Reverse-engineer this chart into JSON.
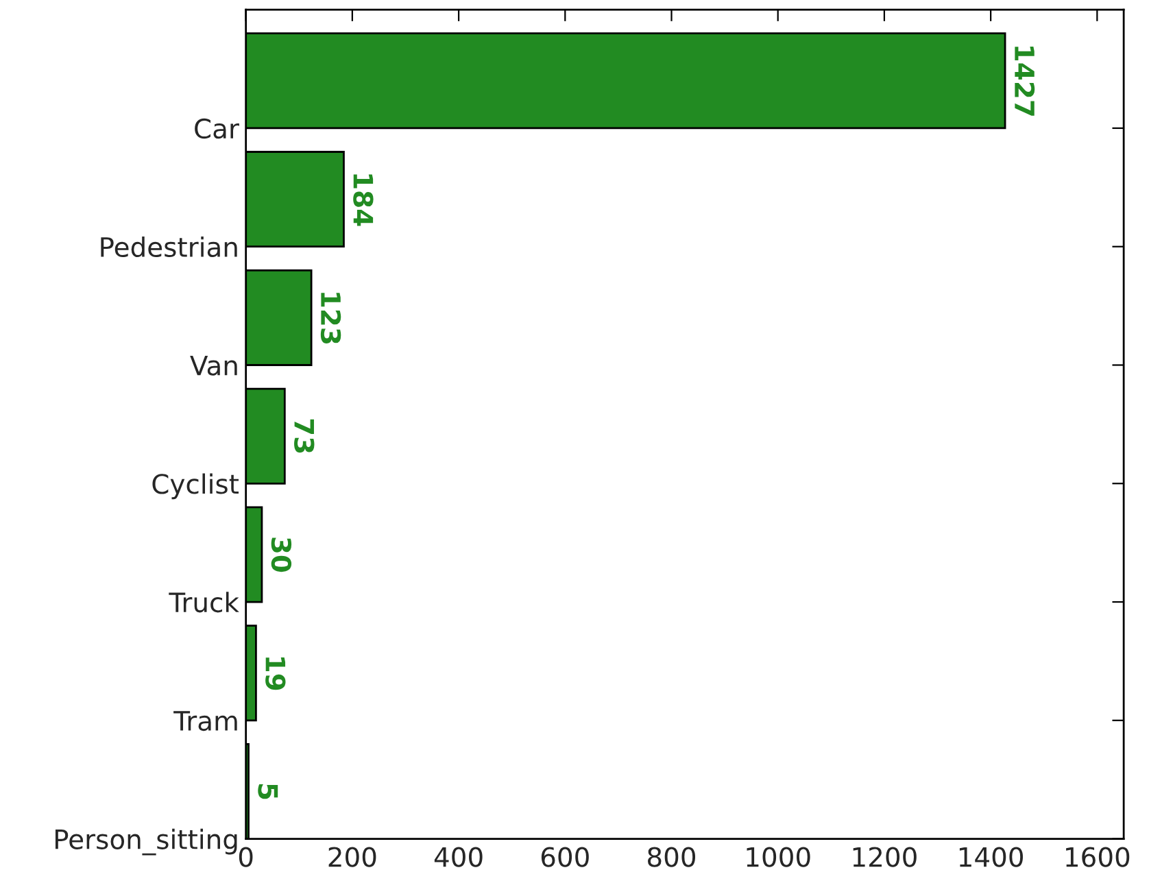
{
  "chart_data": {
    "type": "bar",
    "orientation": "horizontal",
    "categories": [
      "Car",
      "Pedestrian",
      "Van",
      "Cyclist",
      "Truck",
      "Tram",
      "Person_sitting"
    ],
    "values": [
      1427,
      184,
      123,
      73,
      30,
      19,
      5
    ],
    "color": "#228b22",
    "xlim": [
      0,
      1650
    ],
    "xticks": [
      0,
      200,
      400,
      600,
      800,
      1000,
      1200,
      1400,
      1600
    ],
    "data_labels": true,
    "grid": false,
    "legend": false
  }
}
